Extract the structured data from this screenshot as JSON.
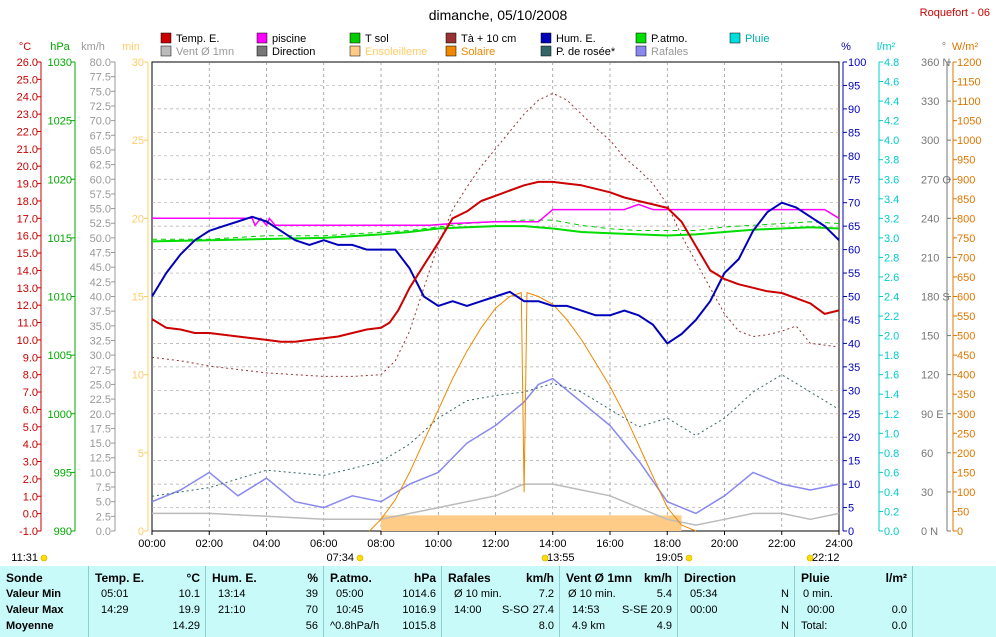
{
  "title": "dimanche, 05/10/2008",
  "station": "Roquefort - 06",
  "colors": {
    "temp": "#cc0000",
    "piscine": "#ff00ff",
    "tsol": "#00cc00",
    "ta10": "#993333",
    "hum": "#0000bb",
    "patmo": "#00dd00",
    "pluie": "#00dddd",
    "vent": "#bbbbbb",
    "direction": "#777777",
    "ensol": "#ffcc88",
    "solaire": "#ee8800",
    "rosee": "#336666",
    "rafales": "#8888ee",
    "grid": "#888888"
  },
  "legend": {
    "row1": [
      {
        "label": "Temp. E.",
        "color": "#cc0000"
      },
      {
        "label": "piscine",
        "color": "#ff00ff"
      },
      {
        "label": "T sol",
        "color": "#00cc00"
      },
      {
        "label": "Tà + 10 cm",
        "color": "#993333"
      },
      {
        "label": "Hum. E.",
        "color": "#0000bb"
      },
      {
        "label": "P.atmo.",
        "color": "#00dd00"
      },
      {
        "label": "Pluie",
        "color": "#00dddd"
      }
    ],
    "row2": [
      {
        "label": "Vent Ø 1mn",
        "color": "#bbbbbb"
      },
      {
        "label": "Direction",
        "color": "#777777"
      },
      {
        "label": "Ensoleilleme",
        "color": "#ffcc88"
      },
      {
        "label": "Solaire",
        "color": "#ee8800"
      },
      {
        "label": "P. de rosée*",
        "color": "#336666"
      },
      {
        "label": "Rafales",
        "color": "#8888ee"
      }
    ]
  },
  "axes": {
    "units_left": [
      {
        "text": "°C",
        "color": "#cc0000"
      },
      {
        "text": "hPa",
        "color": "#00aa00"
      },
      {
        "text": "km/h",
        "color": "#999999"
      },
      {
        "text": "min",
        "color": "#ffcc66"
      }
    ],
    "units_right": [
      {
        "text": "%",
        "color": "#0000bb"
      },
      {
        "text": "l/m²",
        "color": "#00cccc"
      },
      {
        "text": "°",
        "color": "#777777"
      },
      {
        "text": "W/m²",
        "color": "#dd7700"
      }
    ],
    "temp_ticks": [
      "26.0",
      "25.0",
      "24.0",
      "23.0",
      "22.0",
      "21.0",
      "20.0",
      "19.0",
      "18.0",
      "17.0",
      "16.0",
      "15.0",
      "14.0",
      "13.0",
      "12.0",
      "11.0",
      "10.0",
      "9.0",
      "8.0",
      "7.0",
      "6.0",
      "5.0",
      "4.0",
      "3.0",
      "2.0",
      "1.0",
      "0.0",
      "-1.0"
    ],
    "hpa_ticks": [
      "1030",
      "1025",
      "1020",
      "1015",
      "1010",
      "1005",
      "1000",
      "995",
      "990"
    ],
    "kmh_ticks": [
      "80.0",
      "77.5",
      "75.0",
      "72.5",
      "70.0",
      "67.5",
      "65.0",
      "62.5",
      "60.0",
      "57.5",
      "55.0",
      "52.5",
      "50.0",
      "47.5",
      "45.0",
      "42.5",
      "40.0",
      "37.5",
      "35.0",
      "32.5",
      "30.0",
      "27.5",
      "25.0",
      "22.5",
      "20.0",
      "17.5",
      "15.0",
      "12.5",
      "10.0",
      "7.5",
      "5.0",
      "2.5",
      "0.0"
    ],
    "min_ticks": [
      "30",
      "25",
      "20",
      "15",
      "10",
      "5",
      "0"
    ],
    "pct_ticks": [
      "100",
      "95",
      "90",
      "85",
      "80",
      "75",
      "70",
      "65",
      "60",
      "55",
      "50",
      "45",
      "40",
      "35",
      "30",
      "25",
      "20",
      "15",
      "10",
      "5",
      "0"
    ],
    "rain_ticks": [
      "4.8",
      "4.6",
      "4.4",
      "4.2",
      "4.0",
      "3.8",
      "3.6",
      "3.4",
      "3.2",
      "3.0",
      "2.8",
      "2.6",
      "2.4",
      "2.2",
      "2.0",
      "1.8",
      "1.6",
      "1.4",
      "1.2",
      "1.0",
      "0.8",
      "0.6",
      "0.4",
      "0.2",
      "0.0"
    ],
    "dir_ticks": [
      "360 N",
      "330",
      "300",
      "270 O",
      "240",
      "210",
      "180 S",
      "150",
      "120",
      "90 E",
      "60",
      "30",
      "0 N"
    ],
    "wm2_ticks": [
      "1200",
      "1150",
      "1100",
      "1050",
      "1000",
      "950",
      "900",
      "850",
      "800",
      "750",
      "700",
      "650",
      "600",
      "550",
      "500",
      "450",
      "400",
      "350",
      "300",
      "250",
      "200",
      "150",
      "100",
      "50",
      "0"
    ],
    "x_ticks": [
      "00:00",
      "02:00",
      "04:00",
      "06:00",
      "08:00",
      "10:00",
      "12:00",
      "14:00",
      "16:00",
      "18:00",
      "20:00",
      "22:00",
      "24:00"
    ]
  },
  "markers": [
    {
      "label": "11:31",
      "color": "#ffdd00"
    },
    {
      "label": "07:34",
      "color": "#ffdd00"
    },
    {
      "label": "13:55",
      "color": "#ffdd00"
    },
    {
      "label": "19:05",
      "color": "#ffdd00"
    },
    {
      "label": "22:12",
      "color": "#ffdd00"
    }
  ],
  "chart_data": {
    "type": "line",
    "title": "dimanche, 05/10/2008",
    "x_unit": "hour",
    "xlim": [
      0,
      24
    ],
    "series": [
      {
        "name": "Temp. E.",
        "axis": "°C",
        "x": [
          0,
          0.5,
          1,
          1.5,
          2,
          2.5,
          3,
          3.5,
          4,
          4.5,
          5,
          5.5,
          6,
          6.5,
          7,
          7.5,
          8,
          8.3,
          8.6,
          9,
          9.5,
          10,
          10.5,
          11,
          11.5,
          12,
          12.5,
          13,
          13.5,
          14,
          14.5,
          15,
          15.5,
          16,
          16.5,
          17,
          17.5,
          18,
          18.5,
          19,
          19.5,
          20,
          20.5,
          21,
          21.5,
          22,
          22.5,
          23,
          23.5,
          24
        ],
        "y": [
          11.2,
          10.7,
          10.6,
          10.4,
          10.4,
          10.3,
          10.2,
          10.1,
          10.0,
          9.9,
          9.9,
          10.0,
          10.1,
          10.2,
          10.4,
          10.6,
          10.7,
          11.0,
          11.7,
          13.0,
          14.3,
          15.6,
          17.0,
          17.4,
          18.0,
          18.3,
          18.6,
          18.9,
          19.1,
          19.1,
          19.0,
          18.9,
          18.7,
          18.5,
          18.2,
          18.0,
          17.8,
          17.6,
          16.8,
          15.4,
          14.0,
          13.5,
          13.2,
          13.0,
          12.8,
          12.7,
          12.4,
          12.1,
          11.5,
          11.7
        ]
      },
      {
        "name": "piscine",
        "axis": "°C",
        "x": [
          0,
          3.5,
          3.6,
          3.8,
          4.0,
          4.1,
          4.3,
          9.7,
          10.5,
          12,
          13.5,
          14,
          16.5,
          17,
          17.5,
          18,
          20,
          22,
          23.5,
          24
        ],
        "y": [
          17.0,
          17.0,
          16.6,
          17.0,
          16.6,
          17.0,
          16.6,
          16.6,
          16.7,
          16.8,
          16.8,
          17.5,
          17.5,
          17.8,
          17.5,
          17.5,
          17.5,
          17.5,
          17.5,
          17.0
        ]
      },
      {
        "name": "T sol",
        "axis": "°C",
        "x": [
          0,
          2,
          4,
          6,
          8,
          9,
          10,
          11,
          12,
          13,
          14,
          15,
          16,
          17,
          18,
          19,
          20,
          22,
          23,
          24
        ],
        "y": [
          15.8,
          15.8,
          16.0,
          16.0,
          16.2,
          16.3,
          16.5,
          16.7,
          16.8,
          16.9,
          16.9,
          16.6,
          16.4,
          16.3,
          16.3,
          16.3,
          16.5,
          16.7,
          16.8,
          16.7
        ]
      },
      {
        "name": "Tà + 10 cm",
        "axis": "°C",
        "x": [
          0,
          1,
          2,
          3,
          4,
          5,
          6,
          7,
          8,
          8.5,
          9,
          9.5,
          10,
          10.5,
          11,
          11.5,
          12,
          12.5,
          13,
          13.5,
          14,
          14.5,
          15,
          15.5,
          16,
          16.5,
          17,
          17.5,
          18,
          18.5,
          19,
          19.5,
          20,
          20.5,
          21,
          21.5,
          22,
          22.5,
          23,
          24
        ],
        "y": [
          9.0,
          8.8,
          8.5,
          8.3,
          8.1,
          8.0,
          7.9,
          7.9,
          8.0,
          8.8,
          10.5,
          13.0,
          15.5,
          17.5,
          18.8,
          20.0,
          21.0,
          22.0,
          23.0,
          23.8,
          24.2,
          23.8,
          23.0,
          22.2,
          21.5,
          20.5,
          19.8,
          19.0,
          17.8,
          16.0,
          14.5,
          13.0,
          11.5,
          10.5,
          10.2,
          10.3,
          10.5,
          10.8,
          9.8,
          9.6
        ]
      },
      {
        "name": "Hum. E.",
        "axis": "%",
        "x": [
          0,
          0.5,
          1,
          1.5,
          2,
          2.5,
          3,
          3.5,
          4,
          4.5,
          5,
          5.5,
          6,
          6.5,
          7,
          7.5,
          8,
          8.5,
          9,
          9.5,
          10,
          10.5,
          11,
          11.5,
          12,
          12.5,
          13,
          13.5,
          14,
          14.5,
          15,
          15.5,
          16,
          16.5,
          17,
          17.5,
          18,
          18.5,
          19,
          19.5,
          20,
          20.5,
          21,
          21.5,
          22,
          22.5,
          23,
          23.5,
          24
        ],
        "y": [
          50,
          55,
          59,
          62,
          64,
          65,
          66,
          67,
          66,
          64,
          62,
          61,
          62,
          61,
          61,
          60,
          60,
          60,
          56,
          50,
          48,
          49,
          48,
          49,
          50,
          51,
          49,
          49,
          48,
          48,
          47,
          46,
          46,
          47,
          46,
          44,
          40,
          42,
          45,
          49,
          55,
          58,
          64,
          68,
          70,
          69,
          67,
          65,
          62
        ]
      },
      {
        "name": "P.atmo.",
        "axis": "hPa",
        "x": [
          0,
          2,
          4,
          6,
          8,
          9,
          10,
          11,
          12,
          13,
          14,
          15,
          16,
          17,
          18,
          19,
          20,
          21,
          22,
          23,
          24
        ],
        "y": [
          1014.7,
          1014.8,
          1014.9,
          1015.0,
          1015.3,
          1015.5,
          1015.8,
          1015.9,
          1016.0,
          1016.0,
          1015.8,
          1015.5,
          1015.4,
          1015.3,
          1015.2,
          1015.3,
          1015.5,
          1015.7,
          1015.8,
          1015.9,
          1015.8
        ]
      },
      {
        "name": "Vent Ø 1mn",
        "axis": "km/h",
        "x": [
          0,
          2,
          4,
          6,
          8,
          10,
          12,
          13,
          14,
          15,
          16,
          17,
          18,
          19,
          20,
          21,
          22,
          23,
          24
        ],
        "y": [
          3,
          3,
          2.5,
          2,
          2,
          4,
          6,
          8,
          8,
          7,
          6,
          4,
          2,
          1,
          2,
          3,
          3,
          2,
          3
        ]
      },
      {
        "name": "Solaire",
        "axis": "W/m²",
        "x": [
          7.6,
          8,
          8.5,
          9,
          9.5,
          10,
          10.5,
          11,
          11.5,
          12,
          12.5,
          12.9,
          13,
          13.1,
          13.5,
          14,
          14.5,
          15,
          15.5,
          16,
          16.5,
          17,
          17.5,
          18,
          18.5,
          19
        ],
        "y": [
          0,
          30,
          80,
          150,
          230,
          310,
          390,
          460,
          520,
          570,
          600,
          610,
          100,
          610,
          600,
          580,
          540,
          490,
          430,
          370,
          300,
          220,
          140,
          60,
          15,
          0
        ]
      },
      {
        "name": "P. de rosée*",
        "axis": "°C",
        "x": [
          0,
          2,
          4,
          6,
          8,
          9,
          10,
          11,
          12,
          13,
          14,
          15,
          16,
          17,
          18,
          19,
          20,
          21,
          22,
          23,
          24
        ],
        "y": [
          1.0,
          1.5,
          2.5,
          2.2,
          3.0,
          4.0,
          5.5,
          6.5,
          6.8,
          7.0,
          7.5,
          7.0,
          6.0,
          5.0,
          5.5,
          4.5,
          5.5,
          7.0,
          8.0,
          7.0,
          6.0
        ]
      },
      {
        "name": "Rafales",
        "axis": "km/h",
        "x": [
          0,
          1,
          2,
          3,
          4,
          5,
          6,
          7,
          8,
          9,
          10,
          11,
          12,
          12.5,
          13,
          13.5,
          14,
          14.5,
          15,
          15.5,
          16,
          17,
          18,
          19,
          20,
          21,
          22,
          23,
          24
        ],
        "y": [
          5,
          7,
          10,
          6,
          9,
          5,
          4,
          6,
          5,
          8,
          10,
          15,
          18,
          20,
          22,
          25,
          26,
          24,
          22,
          20,
          18,
          12,
          5,
          3,
          6,
          10,
          8,
          7,
          8
        ]
      },
      {
        "name": "Ensoleilleme",
        "axis": "min",
        "x": [
          8,
          18.5
        ],
        "y": [
          1,
          1
        ]
      }
    ]
  },
  "footer": {
    "sonde": {
      "header": "Sonde",
      "rows": [
        "Valeur Min",
        "Valeur Max",
        "Moyenne"
      ]
    },
    "temp": {
      "header": "Temp. E.",
      "unit": "°C",
      "min_time": "05:01",
      "min_val": "10.1",
      "max_time": "14:29",
      "max_val": "19.9",
      "mean_label": "14.29",
      "mean_val": ""
    },
    "hum": {
      "header": "Hum. E.",
      "unit": "%",
      "min_time": "13:14",
      "min_val": "39",
      "max_time": "21:10",
      "max_val": "70",
      "mean_val": "56"
    },
    "patmo": {
      "header": "P.atmo.",
      "unit": "hPa",
      "min_time": "05:00",
      "min_val": "1014.6",
      "max_time": "10:45",
      "max_val": "1016.9",
      "trend": "^0.8hPa/h",
      "mean_val": "1015.8"
    },
    "rafales": {
      "header": "Rafales",
      "unit": "km/h",
      "min_time": "Ø 10 min.",
      "min_val": "7.2",
      "max_time": "14:00",
      "max_dir": "S-SO",
      "max_val": "27.4",
      "mean_val": "8.0"
    },
    "vent": {
      "header": "Vent Ø 1mn",
      "unit": "km/h",
      "min_time": "Ø 10 min.",
      "min_val": "5.4",
      "max_time": "14:53",
      "max_dir": "S-SE",
      "max_val": "20.9",
      "dist": "4.9 km",
      "mean_val": "4.9"
    },
    "direction": {
      "header": "Direction",
      "min_time": "05:34",
      "min_val": "N",
      "max_time": "00:00",
      "max_val": "N",
      "mean_val": "N"
    },
    "pluie": {
      "header": "Pluie",
      "unit": "l/m²",
      "min_time": "0 min.",
      "min_val": "",
      "max_time": "00:00",
      "max_val": "0.0",
      "mean_label": "Total:",
      "mean_val": "0.0"
    }
  }
}
